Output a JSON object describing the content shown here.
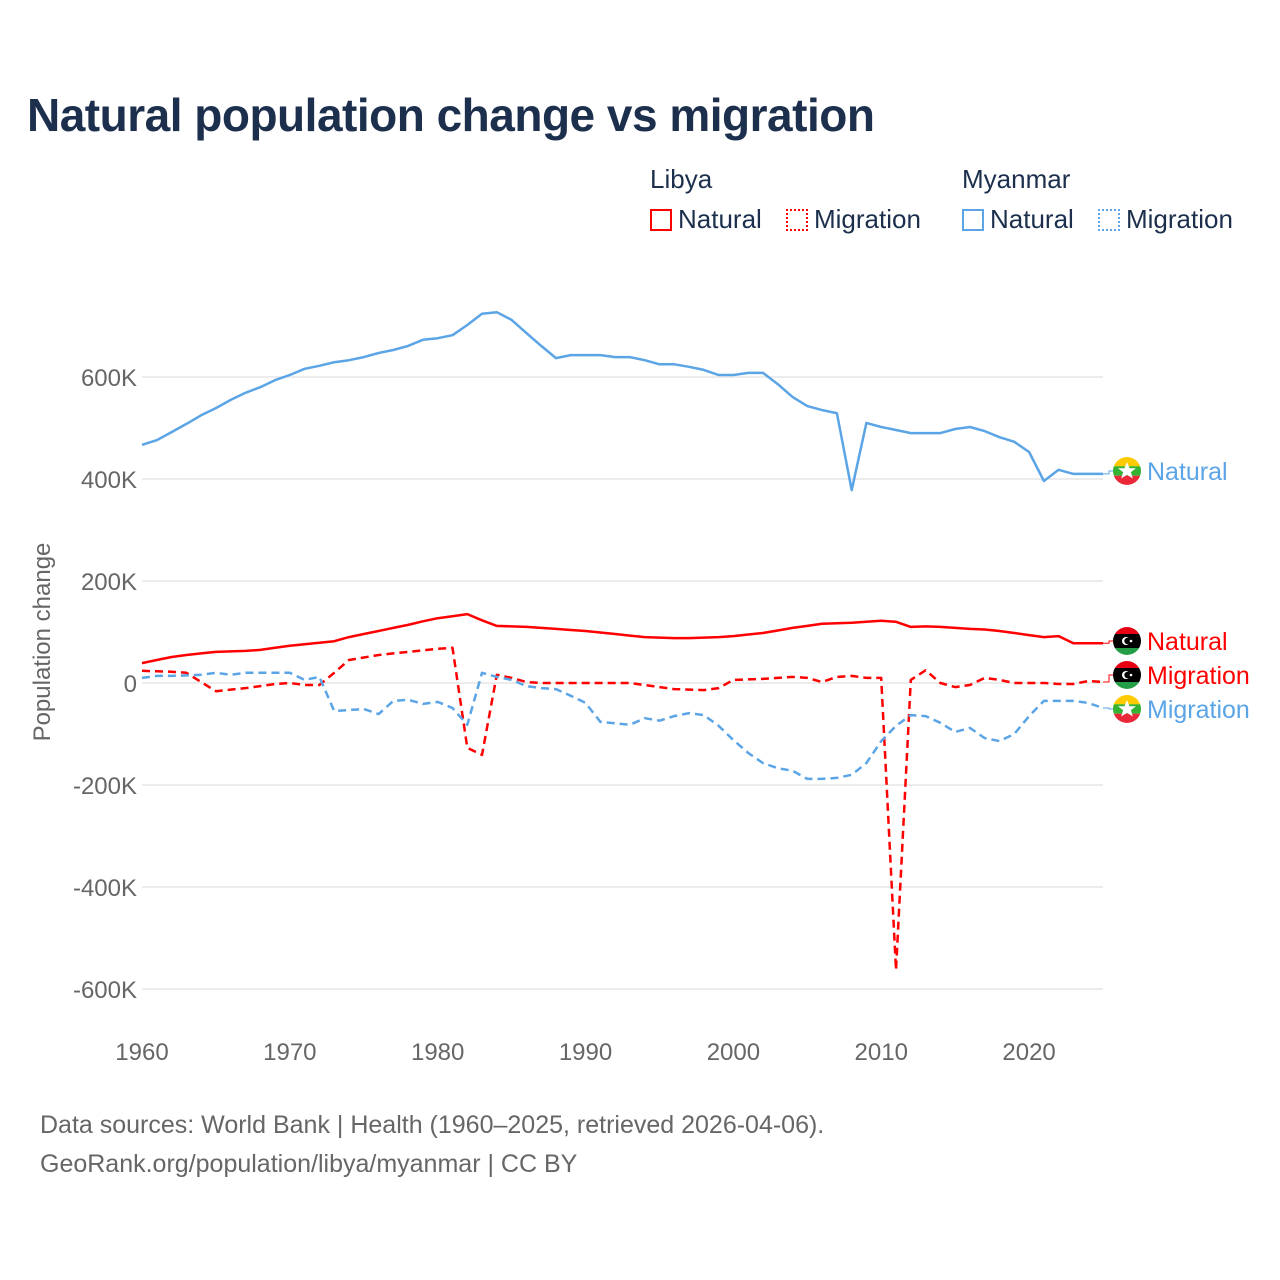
{
  "chart_data": {
    "type": "line",
    "title": "Natural population change vs migration",
    "ylabel": "Population change",
    "xlabel": "",
    "xlim": [
      1960,
      2025
    ],
    "ylim": [
      -650000,
      760000
    ],
    "x_ticks": [
      1960,
      1970,
      1980,
      1990,
      2000,
      2010,
      2020
    ],
    "x_tick_labels": [
      "1960",
      "1970",
      "1980",
      "1990",
      "2000",
      "2010",
      "2020"
    ],
    "y_ticks": [
      -600000,
      -400000,
      -200000,
      0,
      200000,
      400000,
      600000
    ],
    "y_tick_labels": [
      "-600K",
      "-400K",
      "-200K",
      "0",
      "200K",
      "400K",
      "600K"
    ],
    "grid": true,
    "legend": {
      "placement": "top-right",
      "groups": [
        {
          "country": "Libya",
          "items": [
            "Natural",
            "Migration"
          ]
        },
        {
          "country": "Myanmar",
          "items": [
            "Natural",
            "Migration"
          ]
        }
      ]
    },
    "x": [
      1960,
      1961,
      1962,
      1963,
      1964,
      1965,
      1966,
      1967,
      1968,
      1969,
      1970,
      1971,
      1972,
      1973,
      1974,
      1975,
      1976,
      1977,
      1978,
      1979,
      1980,
      1981,
      1982,
      1983,
      1984,
      1985,
      1986,
      1987,
      1988,
      1989,
      1990,
      1991,
      1992,
      1993,
      1994,
      1995,
      1996,
      1997,
      1998,
      1999,
      2000,
      2001,
      2002,
      2003,
      2004,
      2005,
      2006,
      2007,
      2008,
      2009,
      2010,
      2011,
      2012,
      2013,
      2014,
      2015,
      2016,
      2017,
      2018,
      2019,
      2020,
      2021,
      2022,
      2023,
      2024,
      2025
    ],
    "series": [
      {
        "name": "Natural",
        "country": "Libya",
        "color": "#ff0000",
        "dash": "solid",
        "end_label": "Natural",
        "values": [
          39,
          45,
          51,
          55,
          58,
          61,
          62,
          63,
          65,
          69,
          73,
          76,
          79,
          82,
          90,
          96,
          102,
          108,
          114,
          121,
          127,
          131,
          135,
          123,
          112,
          111,
          110,
          108,
          106,
          104,
          102,
          99,
          96,
          93,
          90,
          89,
          88,
          88,
          89,
          90,
          92,
          95,
          98,
          103,
          108,
          112,
          116,
          117,
          118,
          120,
          122,
          120,
          110,
          111,
          110,
          108,
          106,
          105,
          102,
          98,
          94,
          90,
          92,
          78,
          78,
          78
        ]
      },
      {
        "name": "Migration",
        "country": "Libya",
        "color": "#ff0000",
        "dash": "dashed",
        "end_label": "Migration",
        "values": [
          24,
          23,
          22,
          20,
          2,
          -16,
          -13,
          -10,
          -6,
          -2,
          0,
          -4,
          -4,
          20,
          45,
          50,
          55,
          58,
          61,
          64,
          67,
          69,
          -127,
          -141,
          16,
          10,
          2,
          0,
          0,
          0,
          0,
          0,
          0,
          0,
          -4,
          -8,
          -12,
          -13,
          -14,
          -10,
          6,
          7,
          8,
          10,
          12,
          10,
          2,
          12,
          14,
          10,
          10,
          -563,
          6,
          25,
          0,
          -8,
          -4,
          10,
          6,
          0,
          0,
          0,
          -2,
          -2,
          4,
          2
        ]
      },
      {
        "name": "Natural",
        "country": "Myanmar",
        "color": "#5ba4e6",
        "dash": "solid",
        "end_label": "Natural",
        "values": [
          467,
          476,
          492,
          508,
          525,
          539,
          555,
          569,
          580,
          594,
          604,
          616,
          622,
          629,
          633,
          639,
          647,
          653,
          661,
          673,
          676,
          682,
          702,
          724,
          727,
          712,
          686,
          661,
          637,
          643,
          643,
          643,
          639,
          639,
          633,
          625,
          625,
          620,
          614,
          604,
          604,
          608,
          608,
          586,
          561,
          543,
          535,
          529,
          378,
          510,
          502,
          496,
          490,
          490,
          490,
          498,
          502,
          494,
          482,
          473,
          453,
          396,
          418,
          410,
          410,
          410
        ]
      },
      {
        "name": "Migration",
        "country": "Myanmar",
        "color": "#5ba4e6",
        "dash": "dashed",
        "end_label": "Migration",
        "values": [
          10,
          14,
          14,
          15,
          16,
          20,
          16,
          20,
          20,
          20,
          20,
          6,
          12,
          -55,
          -53,
          -51,
          -61,
          -35,
          -33,
          -41,
          -37,
          -49,
          -82,
          20,
          12,
          6,
          -6,
          -10,
          -12,
          -25,
          -39,
          -76,
          -79,
          -82,
          -69,
          -74,
          -65,
          -59,
          -63,
          -84,
          -112,
          -137,
          -157,
          -167,
          -172,
          -188,
          -188,
          -186,
          -180,
          -157,
          -114,
          -84,
          -63,
          -65,
          -78,
          -96,
          -88,
          -108,
          -114,
          -100,
          -65,
          -35,
          -35,
          -35,
          -39,
          -49
        ]
      }
    ],
    "value_unit": "thousands"
  },
  "footer": {
    "line1": "Data sources: World Bank | Health (1960–2025, retrieved 2026-04-06).",
    "line2": "GeoRank.org/population/libya/myanmar | CC BY"
  }
}
